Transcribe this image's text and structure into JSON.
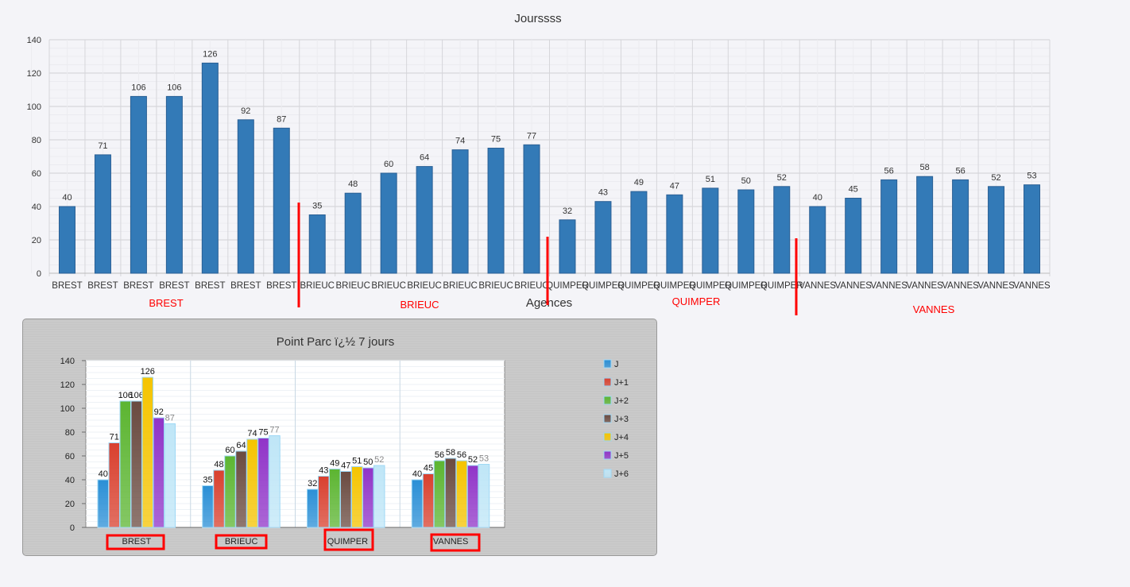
{
  "chart_data": [
    {
      "type": "bar",
      "title": "Jourssss",
      "xlabel": "Agences",
      "ylabel": "",
      "ylim": [
        0,
        140
      ],
      "yticks": [
        0,
        20,
        40,
        60,
        80,
        100,
        120,
        140
      ],
      "categories": [
        "BREST",
        "BREST",
        "BREST",
        "BREST",
        "BREST",
        "BREST",
        "BREST",
        "BRIEUC",
        "BRIEUC",
        "BRIEUC",
        "BRIEUC",
        "BRIEUC",
        "BRIEUC",
        "BRIEUC",
        "QUIMPER",
        "QUIMPER",
        "QUIMPER",
        "QUIMPER",
        "QUIMPER",
        "QUIMPER",
        "QUIMPER",
        "VANNES",
        "VANNES",
        "VANNES",
        "VANNES",
        "VANNES",
        "VANNES",
        "VANNES"
      ],
      "values": [
        40,
        71,
        106,
        106,
        126,
        92,
        87,
        35,
        48,
        60,
        64,
        74,
        75,
        77,
        32,
        43,
        49,
        47,
        51,
        50,
        52,
        40,
        45,
        56,
        58,
        56,
        52,
        53
      ],
      "color": "#337ab7",
      "grid": true,
      "annotations": [
        "BREST",
        "BRIEUC",
        "QUIMPER",
        "VANNES"
      ],
      "annotation_color": "#ff0000"
    },
    {
      "type": "bar",
      "title": "Point Parc ï¿½ 7 jours",
      "ylim": [
        0,
        140
      ],
      "yticks": [
        0,
        20,
        40,
        60,
        80,
        100,
        120,
        140
      ],
      "categories": [
        "BREST",
        "BRIEUC",
        "QUIMPER",
        "VANNES"
      ],
      "legend": "right",
      "grid": true,
      "series": [
        {
          "name": "J",
          "color": "#2a8fd6",
          "values": [
            40,
            35,
            32,
            40
          ]
        },
        {
          "name": "J+1",
          "color": "#d9402e",
          "values": [
            71,
            48,
            43,
            45
          ]
        },
        {
          "name": "J+2",
          "color": "#5cb531",
          "values": [
            106,
            60,
            49,
            56
          ]
        },
        {
          "name": "J+3",
          "color": "#6a4a40",
          "values": [
            106,
            64,
            47,
            58
          ]
        },
        {
          "name": "J+4",
          "color": "#f5c400",
          "values": [
            126,
            74,
            51,
            56
          ]
        },
        {
          "name": "J+5",
          "color": "#9034c8",
          "values": [
            92,
            75,
            50,
            52
          ]
        },
        {
          "name": "J+6",
          "color": "#bfe6f7",
          "values": [
            87,
            77,
            52,
            53
          ]
        }
      ]
    }
  ]
}
